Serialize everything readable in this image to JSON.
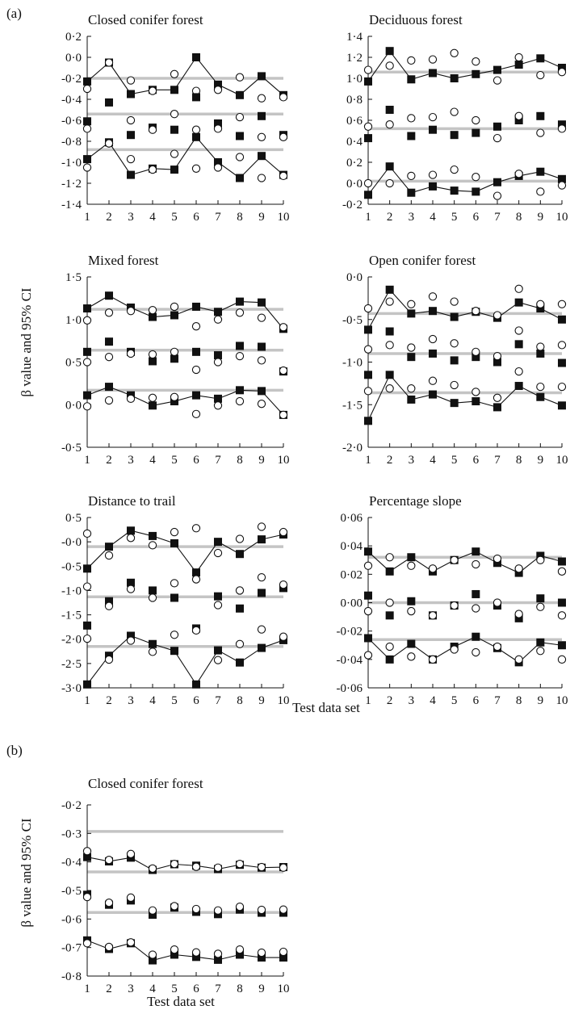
{
  "figure": {
    "panel_a_label": "(a)",
    "panel_b_label": "(b)",
    "ylabel": "β value and 95% CI",
    "xlabel": "Test data set"
  },
  "chart_data": [
    {
      "id": "a-closed-conifer",
      "panel": "a",
      "type": "scatter",
      "title": "Closed conifer forest",
      "ylim": [
        -1.4,
        0.2
      ],
      "yticks": [
        "-1·4",
        "-1·2",
        "-1·0",
        "-0·8",
        "-0·6",
        "-0·4",
        "-0·2",
        "0·0",
        "0·2"
      ],
      "ytickvalues": [
        -1.4,
        -1.2,
        -1.0,
        -0.8,
        -0.6,
        -0.4,
        -0.2,
        0.0,
        0.2
      ],
      "x": [
        1,
        2,
        3,
        4,
        5,
        6,
        7,
        8,
        9,
        10
      ],
      "reference_lines": [
        -0.2,
        -0.54,
        -0.88
      ],
      "series": [
        {
          "marker": "square-line",
          "values": [
            -0.23,
            -0.05,
            -0.35,
            -0.31,
            -0.31,
            0.0,
            -0.26,
            -0.36,
            -0.18,
            -0.36
          ]
        },
        {
          "marker": "circle",
          "values": [
            -0.3,
            -0.05,
            -0.22,
            -0.32,
            -0.16,
            -0.32,
            -0.31,
            -0.19,
            -0.39,
            -0.38
          ]
        },
        {
          "marker": "square",
          "values": [
            -0.61,
            -0.43,
            -0.74,
            -0.67,
            -0.69,
            -0.38,
            -0.63,
            -0.75,
            -0.56,
            -0.74
          ]
        },
        {
          "marker": "circle",
          "values": [
            -0.68,
            -0.82,
            -0.6,
            -0.69,
            -0.54,
            -0.69,
            -0.68,
            -0.57,
            -0.76,
            -0.76
          ]
        },
        {
          "marker": "square-line",
          "values": [
            -0.97,
            -0.81,
            -1.12,
            -1.06,
            -1.07,
            -0.76,
            -1.0,
            -1.15,
            -0.94,
            -1.12
          ]
        },
        {
          "marker": "circle",
          "values": [
            -1.05,
            -0.82,
            -0.97,
            -1.07,
            -0.92,
            -1.06,
            -1.05,
            -0.95,
            -1.15,
            -1.13
          ]
        }
      ]
    },
    {
      "id": "a-deciduous",
      "panel": "a",
      "type": "scatter",
      "title": "Deciduous forest",
      "ylim": [
        -0.2,
        1.4
      ],
      "yticks": [
        "-0·2",
        "0·0",
        "0·2",
        "0·4",
        "0·6",
        "0·8",
        "1·0",
        "1·2",
        "1·4"
      ],
      "ytickvalues": [
        -0.2,
        0.0,
        0.2,
        0.4,
        0.6,
        0.8,
        1.0,
        1.2,
        1.4
      ],
      "x": [
        1,
        2,
        3,
        4,
        5,
        6,
        7,
        8,
        9,
        10
      ],
      "reference_lines": [
        1.06,
        0.52,
        0.02
      ],
      "series": [
        {
          "marker": "square-line",
          "values": [
            0.97,
            1.26,
            0.99,
            1.05,
            1.0,
            1.04,
            1.08,
            1.13,
            1.19,
            1.1
          ]
        },
        {
          "marker": "circle",
          "values": [
            1.08,
            1.12,
            1.17,
            1.18,
            1.24,
            1.16,
            0.98,
            1.2,
            1.03,
            1.06
          ]
        },
        {
          "marker": "square",
          "values": [
            0.43,
            0.7,
            0.45,
            0.51,
            0.46,
            0.48,
            0.54,
            0.6,
            0.64,
            0.56
          ]
        },
        {
          "marker": "circle",
          "values": [
            0.54,
            0.56,
            0.62,
            0.63,
            0.68,
            0.6,
            0.43,
            0.64,
            0.48,
            0.52
          ]
        },
        {
          "marker": "square-line",
          "values": [
            -0.11,
            0.16,
            -0.09,
            -0.03,
            -0.07,
            -0.08,
            0.01,
            0.07,
            0.11,
            0.04
          ]
        },
        {
          "marker": "circle",
          "values": [
            0.0,
            0.0,
            0.07,
            0.08,
            0.13,
            0.06,
            -0.12,
            0.09,
            -0.08,
            -0.02
          ]
        }
      ]
    },
    {
      "id": "a-mixed",
      "panel": "a",
      "type": "scatter",
      "title": "Mixed forest",
      "ylim": [
        -0.5,
        1.5
      ],
      "yticks": [
        "-0·5",
        "0·0",
        "0·5",
        "1·0",
        "1·5"
      ],
      "ytickvalues": [
        -0.5,
        0.0,
        0.5,
        1.0,
        1.5
      ],
      "x": [
        1,
        2,
        3,
        4,
        5,
        6,
        7,
        8,
        9,
        10
      ],
      "reference_lines": [
        1.12,
        0.64,
        0.17
      ],
      "series": [
        {
          "marker": "square-line",
          "values": [
            1.13,
            1.28,
            1.14,
            1.03,
            1.05,
            1.15,
            1.09,
            1.21,
            1.2,
            0.89
          ]
        },
        {
          "marker": "circle",
          "values": [
            0.99,
            1.08,
            1.1,
            1.11,
            1.15,
            0.92,
            1.0,
            1.08,
            1.02,
            0.91
          ]
        },
        {
          "marker": "square",
          "values": [
            0.62,
            0.74,
            0.62,
            0.51,
            0.54,
            0.62,
            0.58,
            0.69,
            0.68,
            0.39
          ]
        },
        {
          "marker": "circle",
          "values": [
            0.5,
            0.56,
            0.6,
            0.59,
            0.62,
            0.41,
            0.5,
            0.57,
            0.52,
            0.4
          ]
        },
        {
          "marker": "square-line",
          "values": [
            0.11,
            0.21,
            0.11,
            -0.01,
            0.04,
            0.11,
            0.07,
            0.17,
            0.16,
            -0.12
          ]
        },
        {
          "marker": "circle",
          "values": [
            -0.02,
            0.05,
            0.07,
            0.08,
            0.09,
            -0.11,
            -0.01,
            0.04,
            0.01,
            -0.12
          ]
        }
      ]
    },
    {
      "id": "a-open-conifer",
      "panel": "a",
      "type": "scatter",
      "title": "Open conifer forest",
      "ylim": [
        -2.0,
        0.0
      ],
      "yticks": [
        "-2·0",
        "-1·5",
        "-1·0",
        "-0·5",
        "0·0"
      ],
      "ytickvalues": [
        -2.0,
        -1.5,
        -1.0,
        -0.5,
        0.0
      ],
      "x": [
        1,
        2,
        3,
        4,
        5,
        6,
        7,
        8,
        9,
        10
      ],
      "reference_lines": [
        -0.43,
        -0.9,
        -1.36
      ],
      "series": [
        {
          "marker": "square-line",
          "values": [
            -0.62,
            -0.15,
            -0.43,
            -0.4,
            -0.47,
            -0.41,
            -0.48,
            -0.3,
            -0.37,
            -0.5
          ]
        },
        {
          "marker": "circle",
          "values": [
            -0.37,
            -0.29,
            -0.32,
            -0.23,
            -0.29,
            -0.4,
            -0.45,
            -0.14,
            -0.32,
            -0.32
          ]
        },
        {
          "marker": "square",
          "values": [
            -1.15,
            -0.64,
            -0.94,
            -0.9,
            -0.98,
            -0.94,
            -1.0,
            -0.79,
            -0.9,
            -1.01
          ]
        },
        {
          "marker": "circle",
          "values": [
            -0.85,
            -0.8,
            -0.83,
            -0.73,
            -0.78,
            -0.88,
            -0.93,
            -0.63,
            -0.82,
            -0.8
          ]
        },
        {
          "marker": "square-line",
          "values": [
            -1.69,
            -1.15,
            -1.44,
            -1.38,
            -1.48,
            -1.46,
            -1.53,
            -1.28,
            -1.41,
            -1.51
          ]
        },
        {
          "marker": "circle",
          "values": [
            -1.34,
            -1.31,
            -1.31,
            -1.22,
            -1.27,
            -1.35,
            -1.42,
            -1.11,
            -1.29,
            -1.29
          ]
        }
      ]
    },
    {
      "id": "a-distance-trail",
      "panel": "a",
      "type": "scatter",
      "title": "Distance to trail",
      "ylim": [
        -3.0,
        0.5
      ],
      "yticks": [
        "-3·0",
        "-2·5",
        "-2·0",
        "-1·5",
        "-1·0",
        "-0·5",
        "-0·0",
        "0·5"
      ],
      "ytickvalues": [
        -3.0,
        -2.5,
        -2.0,
        -1.5,
        -1.0,
        -0.5,
        0.0,
        0.5
      ],
      "x": [
        1,
        2,
        3,
        4,
        5,
        6,
        7,
        8,
        9,
        10
      ],
      "reference_lines": [
        -0.1,
        -1.13,
        -2.15
      ],
      "series": [
        {
          "marker": "square-line",
          "values": [
            -0.55,
            -0.1,
            0.23,
            0.12,
            -0.03,
            -0.63,
            0.0,
            -0.25,
            0.05,
            0.15
          ]
        },
        {
          "marker": "circle",
          "values": [
            0.17,
            -0.28,
            0.08,
            -0.07,
            0.2,
            0.28,
            -0.23,
            0.06,
            0.31,
            0.2
          ]
        },
        {
          "marker": "square",
          "values": [
            -1.72,
            -1.22,
            -0.84,
            -1.0,
            -1.15,
            -1.78,
            -1.12,
            -1.37,
            -1.05,
            -0.95
          ]
        },
        {
          "marker": "circle",
          "values": [
            -0.92,
            -1.32,
            -0.97,
            -1.15,
            -0.85,
            -0.77,
            -1.3,
            -1.0,
            -0.73,
            -0.88
          ]
        },
        {
          "marker": "square-line",
          "values": [
            -2.93,
            -2.34,
            -1.93,
            -2.1,
            -2.24,
            -2.93,
            -2.23,
            -2.48,
            -2.18,
            -2.02
          ]
        },
        {
          "marker": "circle",
          "values": [
            -1.99,
            -2.42,
            -2.03,
            -2.26,
            -1.91,
            -1.82,
            -2.43,
            -2.1,
            -1.8,
            -1.95
          ]
        }
      ]
    },
    {
      "id": "a-percentage-slope",
      "panel": "a",
      "type": "scatter",
      "title": "Percentage slope",
      "ylim": [
        -0.06,
        0.06
      ],
      "yticks": [
        "-0·06",
        "-0·04",
        "-0·02",
        "0·00",
        "0·02",
        "0·04",
        "0·06"
      ],
      "ytickvalues": [
        -0.06,
        -0.04,
        -0.02,
        0.0,
        0.02,
        0.04,
        0.06
      ],
      "x": [
        1,
        2,
        3,
        4,
        5,
        6,
        7,
        8,
        9,
        10
      ],
      "reference_lines": [
        0.032,
        0.0,
        -0.026
      ],
      "series": [
        {
          "marker": "square-line",
          "values": [
            0.036,
            0.022,
            0.032,
            0.022,
            0.03,
            0.036,
            0.028,
            0.021,
            0.033,
            0.029
          ]
        },
        {
          "marker": "circle",
          "values": [
            0.026,
            0.032,
            0.026,
            0.024,
            0.03,
            0.027,
            0.031,
            0.024,
            0.03,
            0.022
          ]
        },
        {
          "marker": "square",
          "values": [
            0.005,
            -0.009,
            0.001,
            -0.009,
            -0.002,
            0.006,
            -0.002,
            -0.011,
            0.003,
            0.0
          ]
        },
        {
          "marker": "circle",
          "values": [
            -0.006,
            0.0,
            -0.006,
            -0.009,
            -0.002,
            -0.004,
            0.0,
            -0.008,
            -0.003,
            -0.009
          ]
        },
        {
          "marker": "square-line",
          "values": [
            -0.025,
            -0.04,
            -0.029,
            -0.04,
            -0.031,
            -0.024,
            -0.032,
            -0.042,
            -0.028,
            -0.03
          ]
        },
        {
          "marker": "circle",
          "values": [
            -0.037,
            -0.031,
            -0.038,
            -0.04,
            -0.033,
            -0.035,
            -0.031,
            -0.04,
            -0.034,
            -0.04
          ]
        }
      ]
    },
    {
      "id": "b-closed-conifer",
      "panel": "b",
      "type": "scatter",
      "title": "Closed conifer forest",
      "ylim": [
        -0.8,
        -0.2
      ],
      "yticks": [
        "-0·8",
        "-0·7",
        "-0·6",
        "-0·5",
        "-0·4",
        "-0·3",
        "-0·2"
      ],
      "ytickvalues": [
        -0.8,
        -0.7,
        -0.6,
        -0.5,
        -0.4,
        -0.3,
        -0.2
      ],
      "x": [
        1,
        2,
        3,
        4,
        5,
        6,
        7,
        8,
        9,
        10
      ],
      "reference_lines": [
        -0.293,
        -0.435,
        -0.577
      ],
      "series": [
        {
          "marker": "square-line",
          "values": [
            -0.383,
            -0.398,
            -0.385,
            -0.428,
            -0.408,
            -0.413,
            -0.425,
            -0.41,
            -0.42,
            -0.418
          ]
        },
        {
          "marker": "circle",
          "values": [
            -0.362,
            -0.393,
            -0.372,
            -0.423,
            -0.407,
            -0.417,
            -0.42,
            -0.407,
            -0.418,
            -0.42
          ]
        },
        {
          "marker": "square",
          "values": [
            -0.515,
            -0.55,
            -0.535,
            -0.585,
            -0.56,
            -0.575,
            -0.583,
            -0.567,
            -0.578,
            -0.578
          ]
        },
        {
          "marker": "circle",
          "values": [
            -0.523,
            -0.543,
            -0.525,
            -0.57,
            -0.555,
            -0.565,
            -0.57,
            -0.557,
            -0.568,
            -0.567
          ]
        },
        {
          "marker": "square-line",
          "values": [
            -0.675,
            -0.705,
            -0.685,
            -0.745,
            -0.725,
            -0.733,
            -0.743,
            -0.725,
            -0.735,
            -0.735
          ]
        },
        {
          "marker": "circle",
          "values": [
            -0.685,
            -0.698,
            -0.682,
            -0.725,
            -0.707,
            -0.717,
            -0.722,
            -0.707,
            -0.718,
            -0.715
          ]
        }
      ]
    }
  ]
}
